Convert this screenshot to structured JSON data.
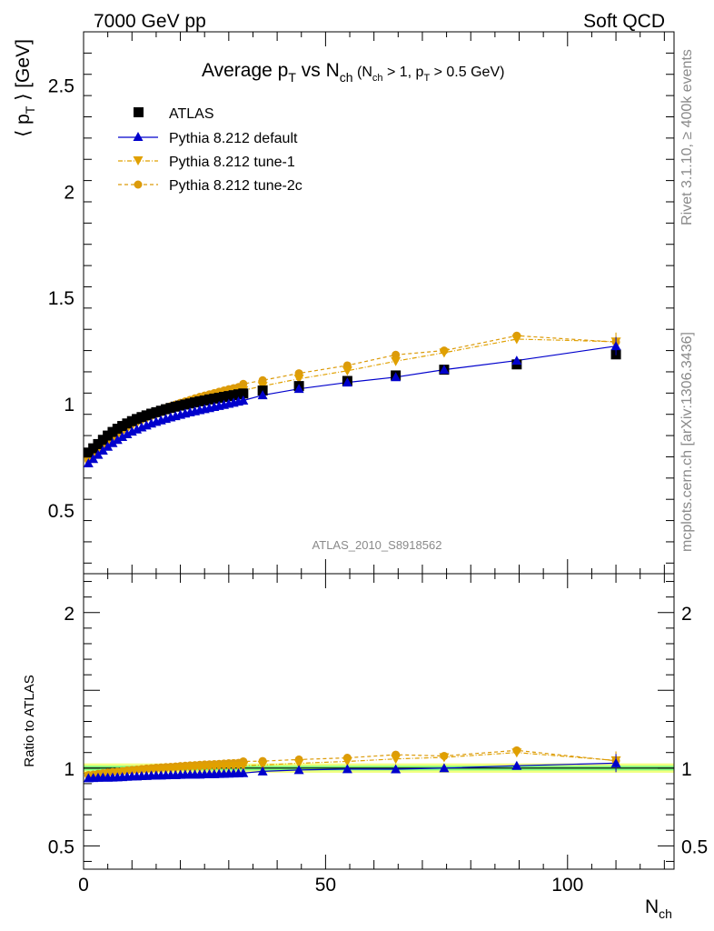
{
  "header": {
    "left": "7000 GeV pp",
    "right": "Soft QCD"
  },
  "side_labels": {
    "rivet": "Rivet 3.1.10, ≥ 400k events",
    "mcplots": "mcplots.cern.ch [arXiv:1306.3436]"
  },
  "analysis_label": "ATLAS_2010_S8918562",
  "colors": {
    "atlas": "#000000",
    "default": "#0000cc",
    "tune1": "#e0a000",
    "tune2c": "#dc9b0a",
    "band_green": "#7fff7f",
    "band_yellow": "#f2ff80"
  },
  "chart_data": [
    {
      "type": "scatter",
      "title_main": "Average p",
      "title_main_sub": "T",
      "title_vs": " vs N",
      "title_vs_sub": "ch",
      "title_cut": " (N",
      "title_cut_sub1": "ch",
      "title_cut_mid": " > 1, p",
      "title_cut_sub2": "T",
      "title_cut_end": " > 0.5 GeV)",
      "ylabel": "⟨ p",
      "ylabel_sub": "T",
      "ylabel_end": " ⟩ [GeV]",
      "xlim": [
        0,
        122
      ],
      "ylim": [
        0.2,
        2.75
      ],
      "yticks": [
        {
          "v": 0.5,
          "label": "0.5"
        },
        {
          "v": 1,
          "label": "1"
        },
        {
          "v": 1.5,
          "label": "1.5"
        },
        {
          "v": 2,
          "label": "2"
        },
        {
          "v": 2.5,
          "label": "2.5"
        }
      ],
      "legend_placement": "top-left",
      "legend": [
        "ATLAS",
        "Pythia 8.212 default",
        "Pythia 8.212 tune-1",
        "Pythia 8.212 tune-2c"
      ],
      "x": [
        1,
        2,
        3,
        4,
        5,
        6,
        7,
        8,
        9,
        10,
        11,
        12,
        13,
        14,
        15,
        16,
        17,
        18,
        19,
        20,
        21,
        22,
        23,
        24,
        25,
        26,
        27,
        28,
        29,
        30,
        31,
        32,
        33,
        37,
        44.5,
        54.5,
        64.5,
        74.5,
        89.5,
        110
      ],
      "series": [
        {
          "name": "ATLAS",
          "marker": "square",
          "values": [
            0.77,
            0.79,
            0.81,
            0.83,
            0.85,
            0.867,
            0.882,
            0.895,
            0.907,
            0.918,
            0.928,
            0.937,
            0.945,
            0.953,
            0.96,
            0.967,
            0.974,
            0.98,
            0.986,
            0.991,
            0.996,
            1.001,
            1.006,
            1.011,
            1.015,
            1.02,
            1.024,
            1.028,
            1.032,
            1.036,
            1.04,
            1.044,
            1.048,
            1.062,
            1.083,
            1.107,
            1.133,
            1.16,
            1.185,
            1.232
          ]
        },
        {
          "name": "Pythia 8.212 default",
          "marker": "triangle-up",
          "values": [
            0.72,
            0.74,
            0.76,
            0.78,
            0.798,
            0.815,
            0.83,
            0.844,
            0.857,
            0.869,
            0.879,
            0.889,
            0.898,
            0.907,
            0.915,
            0.922,
            0.929,
            0.936,
            0.942,
            0.948,
            0.954,
            0.96,
            0.965,
            0.97,
            0.975,
            0.98,
            0.985,
            0.99,
            0.995,
            1.0,
            1.005,
            1.01,
            1.015,
            1.04,
            1.07,
            1.1,
            1.125,
            1.16,
            1.203,
            1.271
          ]
        },
        {
          "name": "Pythia 8.212 tune-1",
          "marker": "triangle-down",
          "values": [
            0.73,
            0.75,
            0.772,
            0.795,
            0.816,
            0.835,
            0.852,
            0.867,
            0.881,
            0.894,
            0.906,
            0.917,
            0.927,
            0.937,
            0.946,
            0.955,
            0.963,
            0.971,
            0.979,
            0.986,
            0.993,
            1.0,
            1.007,
            1.013,
            1.019,
            1.025,
            1.031,
            1.037,
            1.043,
            1.048,
            1.053,
            1.058,
            1.063,
            1.083,
            1.117,
            1.155,
            1.2,
            1.24,
            1.304,
            1.292
          ]
        },
        {
          "name": "Pythia 8.212 tune-2c",
          "marker": "circle",
          "values": [
            0.735,
            0.757,
            0.78,
            0.803,
            0.825,
            0.845,
            0.862,
            0.878,
            0.893,
            0.907,
            0.919,
            0.931,
            0.942,
            0.952,
            0.962,
            0.971,
            0.98,
            0.988,
            0.996,
            1.004,
            1.011,
            1.018,
            1.025,
            1.032,
            1.038,
            1.044,
            1.05,
            1.056,
            1.062,
            1.068,
            1.073,
            1.078,
            1.093,
            1.11,
            1.143,
            1.18,
            1.23,
            1.25,
            1.32,
            1.29
          ]
        }
      ]
    },
    {
      "type": "scatter",
      "ylabel": "Ratio to ATLAS",
      "xlabel": "N",
      "xlabel_sub": "ch",
      "xlim": [
        0,
        122
      ],
      "ylim": [
        0.35,
        2.25
      ],
      "xticks": [
        {
          "v": 0,
          "label": "0"
        },
        {
          "v": 50,
          "label": "50"
        },
        {
          "v": 100,
          "label": "100"
        }
      ],
      "yticks": [
        {
          "v": 0.5,
          "label": "0.5"
        },
        {
          "v": 1,
          "label": "1"
        },
        {
          "v": 2,
          "label": "2"
        }
      ],
      "x": [
        1,
        2,
        3,
        4,
        5,
        6,
        7,
        8,
        9,
        10,
        11,
        12,
        13,
        14,
        15,
        16,
        17,
        18,
        19,
        20,
        21,
        22,
        23,
        24,
        25,
        26,
        27,
        28,
        29,
        30,
        31,
        32,
        33,
        37,
        44.5,
        54.5,
        64.5,
        74.5,
        89.5,
        110
      ],
      "series": [
        {
          "name": "Pythia 8.212 default",
          "marker": "triangle-up",
          "values": [
            0.935,
            0.937,
            0.938,
            0.94,
            0.939,
            0.94,
            0.941,
            0.943,
            0.945,
            0.947,
            0.947,
            0.949,
            0.95,
            0.952,
            0.953,
            0.953,
            0.954,
            0.955,
            0.955,
            0.957,
            0.958,
            0.959,
            0.959,
            0.959,
            0.961,
            0.961,
            0.962,
            0.963,
            0.964,
            0.965,
            0.966,
            0.967,
            0.968,
            0.979,
            0.988,
            0.994,
            0.993,
            1.0,
            1.015,
            1.032
          ]
        },
        {
          "name": "Pythia 8.212 tune-1",
          "marker": "triangle-down",
          "values": [
            0.948,
            0.949,
            0.953,
            0.958,
            0.96,
            0.963,
            0.966,
            0.969,
            0.971,
            0.974,
            0.976,
            0.979,
            0.981,
            0.983,
            0.985,
            0.988,
            0.989,
            0.991,
            0.993,
            0.995,
            0.997,
            0.999,
            1.001,
            1.002,
            1.004,
            1.005,
            1.007,
            1.009,
            1.011,
            1.012,
            1.013,
            1.013,
            1.014,
            1.02,
            1.031,
            1.043,
            1.059,
            1.069,
            1.1,
            1.049
          ]
        },
        {
          "name": "Pythia 8.212 tune-2c",
          "marker": "circle",
          "values": [
            0.955,
            0.958,
            0.963,
            0.967,
            0.971,
            0.975,
            0.977,
            0.981,
            0.985,
            0.988,
            0.99,
            0.994,
            0.997,
            0.999,
            1.002,
            1.004,
            1.006,
            1.008,
            1.01,
            1.013,
            1.015,
            1.017,
            1.019,
            1.021,
            1.023,
            1.024,
            1.025,
            1.027,
            1.029,
            1.031,
            1.032,
            1.033,
            1.043,
            1.045,
            1.055,
            1.066,
            1.086,
            1.078,
            1.114,
            1.047
          ]
        }
      ]
    }
  ]
}
